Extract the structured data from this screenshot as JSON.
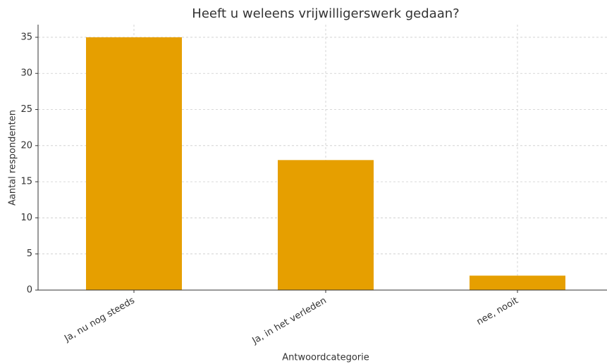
{
  "chart_data": {
    "type": "bar",
    "title": "Heeft u weleens vrijwilligerswerk gedaan?",
    "x_label": "Antwoordcategorie",
    "y_label": "Aantal respondenten",
    "categories": [
      "Ja, nu nog steeds",
      "Ja, in het verleden",
      "nee, nooit"
    ],
    "values": [
      35,
      18,
      2
    ],
    "color": "#e69f00",
    "ylim": [
      0,
      36.75
    ],
    "yticks": [
      0,
      5,
      10,
      15,
      20,
      25,
      30,
      35
    ],
    "grid": true
  }
}
